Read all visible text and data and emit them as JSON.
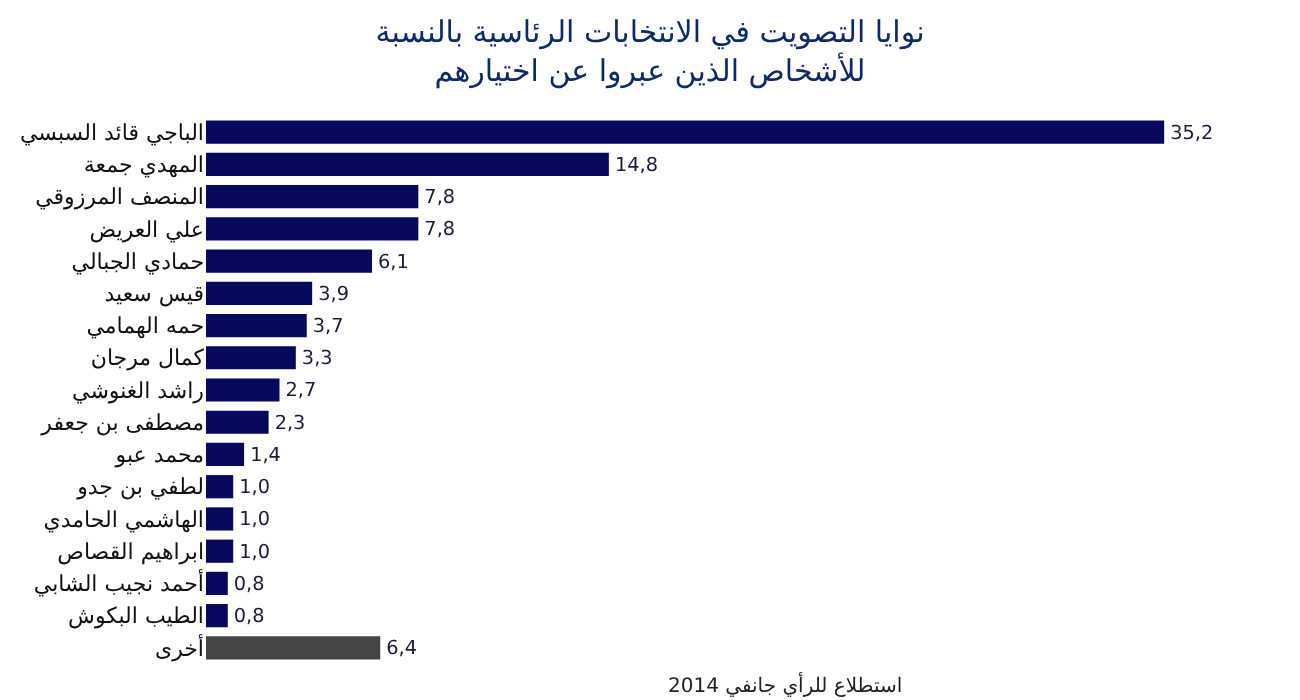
{
  "chart_data": {
    "type": "bar",
    "orientation": "horizontal",
    "title": "نوايا التصويت في الانتخابات الرئاسية بالنسبة\nللأشخاص الذين عبروا عن اختيارهم",
    "categories": [
      "الباجي قائد السبسي",
      "المهدي جمعة",
      "المنصف المرزوقي",
      "علي العريض",
      "حمادي الجبالي",
      "قيس سعيد",
      "حمه الهمامي",
      "كمال مرجان",
      "راشد الغنوشي",
      "مصطفى بن جعفر",
      "محمد عبو",
      "لطفي بن جدو",
      "الهاشمي الحامدي",
      "ابراهيم القصاص",
      "أحمد نجيب الشابي",
      "الطيب البكوش",
      "أخرى"
    ],
    "values": [
      35.2,
      14.8,
      7.8,
      7.8,
      6.1,
      3.9,
      3.7,
      3.3,
      2.7,
      2.3,
      1.4,
      1.0,
      1.0,
      1.0,
      0.8,
      0.8,
      6.4
    ],
    "value_labels": [
      "35,2",
      "14,8",
      "7,8",
      "7,8",
      "6,1",
      "3,9",
      "3,7",
      "3,3",
      "2,7",
      "2,3",
      "1,4",
      "1,0",
      "1,0",
      "1,0",
      "0,8",
      "0,8",
      "6,4"
    ],
    "colors": [
      "#08085e",
      "#08085e",
      "#08085e",
      "#08085e",
      "#08085e",
      "#08085e",
      "#08085e",
      "#08085e",
      "#08085e",
      "#08085e",
      "#08085e",
      "#08085e",
      "#08085e",
      "#08085e",
      "#08085e",
      "#08085e",
      "#444444"
    ],
    "annotations": [
      "استطلاع للرأي جانفي 2014"
    ],
    "legend": false
  }
}
